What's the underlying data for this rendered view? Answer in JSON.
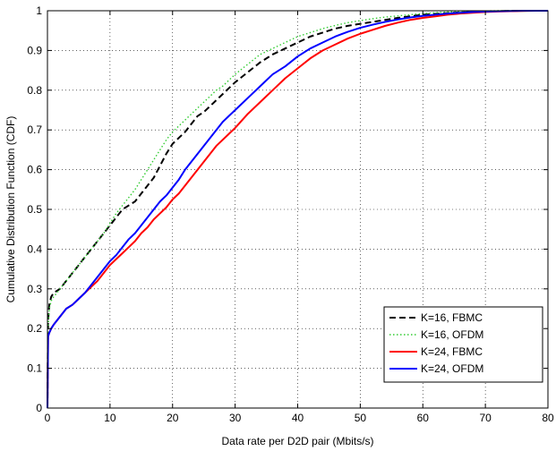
{
  "chart_data": {
    "type": "line",
    "title": "",
    "xlabel": "Data rate per D2D pair (Mbits/s)",
    "ylabel": "Cumulative Distribution Function (CDF)",
    "xlim": [
      0,
      80
    ],
    "ylim": [
      0,
      1
    ],
    "xticks": [
      0,
      10,
      20,
      30,
      40,
      50,
      60,
      70,
      80
    ],
    "yticks": [
      0,
      0.1,
      0.2,
      0.3,
      0.4,
      0.5,
      0.6,
      0.7,
      0.8,
      0.9,
      1
    ],
    "grid": true,
    "legend_position": "bottom-right",
    "series": [
      {
        "name": "K=16, FBMC",
        "color": "#000000",
        "dash": "dashed",
        "x": [
          0,
          0.1,
          0.3,
          0.6,
          1,
          2,
          3,
          4,
          5,
          6,
          7,
          8,
          9,
          10,
          11,
          12,
          13,
          14,
          15,
          16,
          17,
          18,
          19,
          20,
          21,
          22,
          23,
          24,
          25,
          26,
          27,
          28,
          29,
          30,
          32,
          34,
          36,
          38,
          40,
          42,
          44,
          46,
          48,
          50,
          52,
          54,
          56,
          58,
          60,
          62,
          64,
          66,
          68,
          70,
          72,
          74,
          76,
          78,
          80
        ],
        "y": [
          0,
          0.22,
          0.26,
          0.28,
          0.29,
          0.3,
          0.32,
          0.34,
          0.36,
          0.38,
          0.4,
          0.42,
          0.44,
          0.46,
          0.48,
          0.5,
          0.51,
          0.52,
          0.54,
          0.56,
          0.58,
          0.61,
          0.64,
          0.665,
          0.68,
          0.695,
          0.715,
          0.735,
          0.745,
          0.76,
          0.775,
          0.79,
          0.805,
          0.82,
          0.845,
          0.87,
          0.89,
          0.905,
          0.92,
          0.935,
          0.945,
          0.955,
          0.962,
          0.967,
          0.972,
          0.977,
          0.982,
          0.986,
          0.99,
          0.992,
          0.994,
          0.996,
          0.997,
          0.998,
          0.999,
          0.9995,
          1,
          1,
          1
        ]
      },
      {
        "name": "K=16, OFDM",
        "color": "#33cc33",
        "dash": "dotted",
        "x": [
          0,
          0.1,
          0.3,
          0.6,
          1,
          2,
          3,
          4,
          5,
          6,
          7,
          8,
          9,
          10,
          11,
          12,
          13,
          14,
          15,
          16,
          17,
          18,
          19,
          20,
          21,
          22,
          23,
          24,
          25,
          26,
          27,
          28,
          29,
          30,
          32,
          34,
          36,
          38,
          40,
          42,
          44,
          46,
          48,
          50,
          52,
          54,
          56,
          58,
          60,
          62,
          64,
          66,
          68,
          70,
          72,
          74,
          76,
          78,
          80
        ],
        "y": [
          0,
          0.2,
          0.25,
          0.27,
          0.28,
          0.3,
          0.32,
          0.34,
          0.36,
          0.38,
          0.4,
          0.42,
          0.44,
          0.465,
          0.49,
          0.51,
          0.53,
          0.55,
          0.575,
          0.6,
          0.625,
          0.65,
          0.675,
          0.695,
          0.71,
          0.725,
          0.74,
          0.755,
          0.77,
          0.785,
          0.8,
          0.81,
          0.825,
          0.84,
          0.865,
          0.89,
          0.905,
          0.92,
          0.935,
          0.945,
          0.955,
          0.963,
          0.97,
          0.975,
          0.98,
          0.984,
          0.987,
          0.99,
          0.993,
          0.995,
          0.997,
          0.998,
          0.999,
          0.9995,
          1,
          1,
          1,
          1,
          1
        ]
      },
      {
        "name": "K=24, FBMC",
        "color": "#ff0000",
        "dash": "solid",
        "x": [
          0,
          0.1,
          0.3,
          0.6,
          1,
          2,
          3,
          4,
          5,
          6,
          7,
          8,
          9,
          10,
          11,
          12,
          13,
          14,
          15,
          16,
          17,
          18,
          19,
          20,
          21,
          22,
          23,
          24,
          25,
          26,
          27,
          28,
          29,
          30,
          32,
          34,
          36,
          38,
          40,
          42,
          44,
          46,
          48,
          50,
          52,
          54,
          56,
          58,
          60,
          62,
          64,
          66,
          68,
          70,
          72,
          74,
          76,
          78,
          80
        ],
        "y": [
          0,
          0.18,
          0.19,
          0.2,
          0.21,
          0.23,
          0.25,
          0.26,
          0.275,
          0.29,
          0.305,
          0.32,
          0.34,
          0.36,
          0.375,
          0.39,
          0.405,
          0.42,
          0.44,
          0.455,
          0.475,
          0.49,
          0.505,
          0.525,
          0.54,
          0.56,
          0.58,
          0.6,
          0.62,
          0.64,
          0.66,
          0.675,
          0.69,
          0.705,
          0.74,
          0.77,
          0.8,
          0.83,
          0.855,
          0.88,
          0.9,
          0.915,
          0.93,
          0.942,
          0.952,
          0.962,
          0.97,
          0.977,
          0.982,
          0.986,
          0.99,
          0.993,
          0.995,
          0.997,
          0.998,
          0.999,
          0.9995,
          1,
          1
        ]
      },
      {
        "name": "K=24, OFDM",
        "color": "#0000ff",
        "dash": "solid",
        "x": [
          0,
          0.1,
          0.3,
          0.6,
          1,
          2,
          3,
          4,
          5,
          6,
          7,
          8,
          9,
          10,
          11,
          12,
          13,
          14,
          15,
          16,
          17,
          18,
          19,
          20,
          21,
          22,
          23,
          24,
          25,
          26,
          27,
          28,
          29,
          30,
          32,
          34,
          36,
          38,
          40,
          42,
          44,
          46,
          48,
          50,
          52,
          54,
          56,
          58,
          60,
          62,
          64,
          66,
          68,
          70,
          72,
          74,
          76,
          78,
          80
        ],
        "y": [
          0,
          0.18,
          0.19,
          0.2,
          0.21,
          0.23,
          0.25,
          0.26,
          0.275,
          0.29,
          0.31,
          0.33,
          0.35,
          0.37,
          0.385,
          0.405,
          0.425,
          0.44,
          0.46,
          0.48,
          0.5,
          0.52,
          0.535,
          0.555,
          0.575,
          0.6,
          0.62,
          0.64,
          0.66,
          0.68,
          0.7,
          0.72,
          0.735,
          0.75,
          0.78,
          0.81,
          0.84,
          0.86,
          0.885,
          0.905,
          0.92,
          0.935,
          0.947,
          0.957,
          0.965,
          0.972,
          0.978,
          0.983,
          0.987,
          0.99,
          0.993,
          0.995,
          0.997,
          0.998,
          0.999,
          0.9995,
          1,
          1,
          1
        ]
      }
    ]
  }
}
